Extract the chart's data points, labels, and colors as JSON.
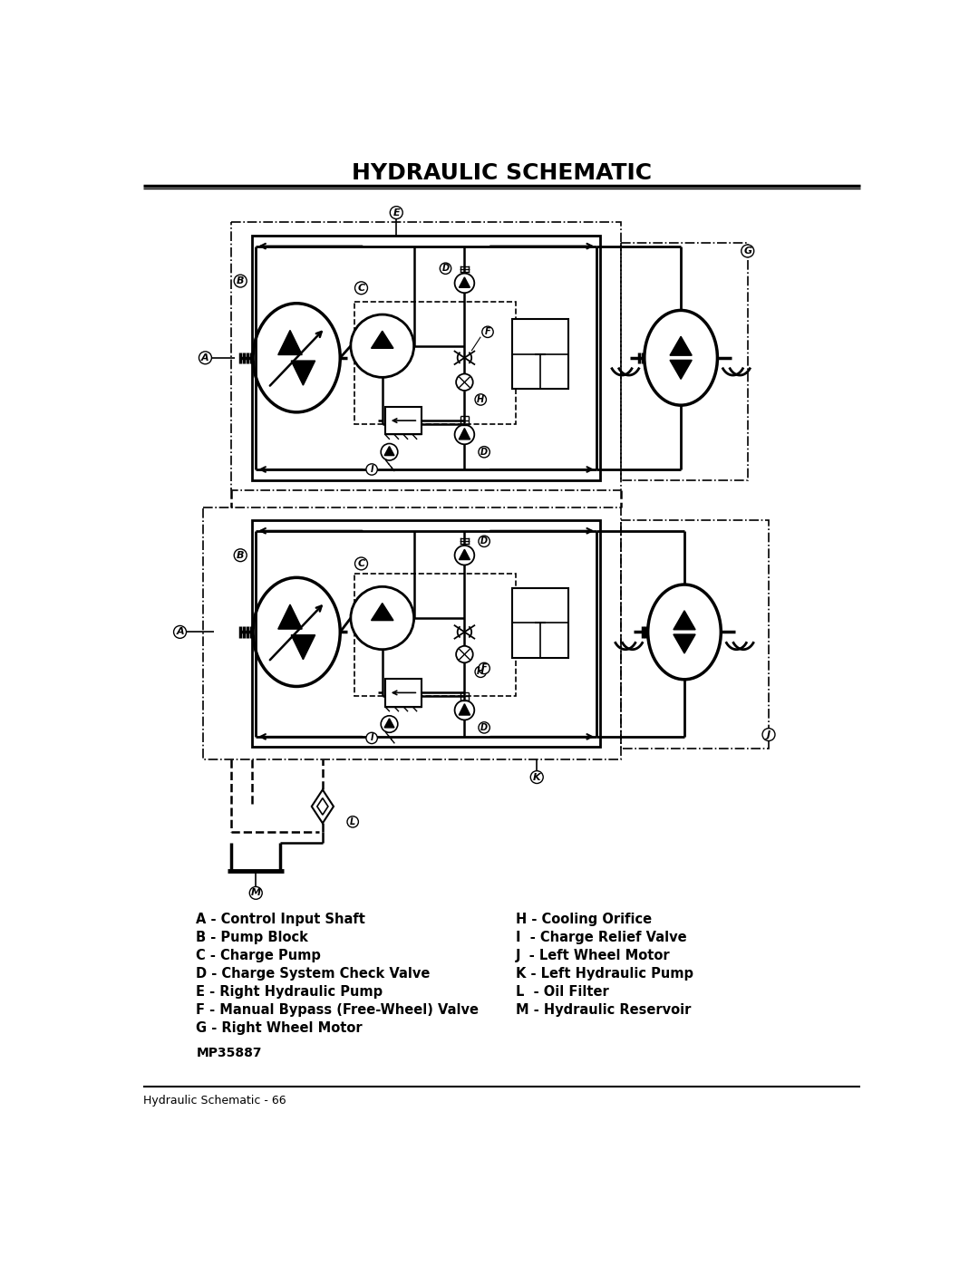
{
  "title": "HYDRAULIC SCHEMATIC",
  "footer_text": "Hydraulic Schematic - 66",
  "part_number": "MP35887",
  "legend_left": [
    "A - Control Input Shaft",
    "B - Pump Block",
    "C - Charge Pump",
    "D - Charge System Check Valve",
    "E - Right Hydraulic Pump",
    "F - Manual Bypass (Free-Wheel) Valve",
    "G - Right Wheel Motor"
  ],
  "legend_right": [
    "H - Cooling Orifice",
    "I  - Charge Relief Valve",
    "J  - Left Wheel Motor",
    "K - Left Hydraulic Pump",
    "L  - Oil Filter",
    "M - Hydraulic Reservoir",
    ""
  ],
  "bg_color": "#ffffff",
  "line_color": "#000000"
}
